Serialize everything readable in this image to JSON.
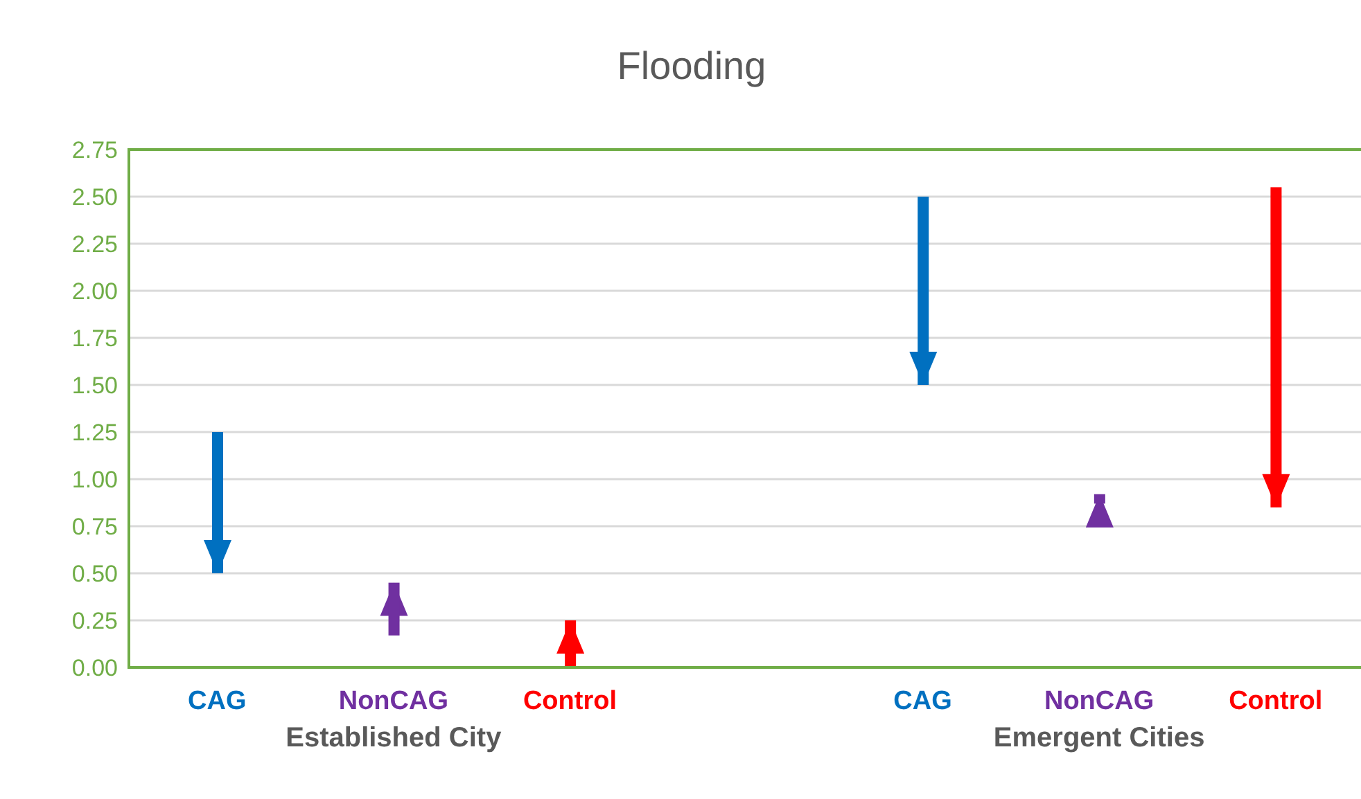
{
  "chart_data": {
    "type": "bar",
    "title": "Flooding",
    "categories": [
      "CAG",
      "NonCAG",
      "Control",
      null,
      "CAG",
      "NonCAG",
      "Control"
    ],
    "base": [
      1.25,
      0.17,
      0,
      null,
      2.5,
      0.87,
      2.55
    ],
    "values": [
      -0.75,
      0.28,
      0.25,
      null,
      -1.0,
      0.05,
      -1.7
    ],
    "colors": [
      "#0070c0",
      "#7030a0",
      "#ff0000",
      null,
      "#0070c0",
      "#7030a0",
      "#ff0000"
    ],
    "ylim": [
      0,
      2.75
    ],
    "yticks": [
      {
        "value": 0,
        "label": "0.00"
      },
      {
        "value": 0.25,
        "label": "0.25"
      },
      {
        "value": 0.5,
        "label": "0.50"
      },
      {
        "value": 0.75,
        "label": "0.75"
      },
      {
        "value": 1,
        "label": "1.00"
      },
      {
        "value": 1.25,
        "label": "1.25"
      },
      {
        "value": 1.5,
        "label": "1.50"
      },
      {
        "value": 1.75,
        "label": "1.75"
      },
      {
        "value": 2,
        "label": "2.00"
      },
      {
        "value": 2.25,
        "label": "2.25"
      },
      {
        "value": 2.5,
        "label": "2.50"
      },
      {
        "value": 2.75,
        "label": "2.75"
      }
    ],
    "grid": "y",
    "legend": false,
    "annotations": [
      "Established City",
      "Emergent Cities"
    ]
  }
}
